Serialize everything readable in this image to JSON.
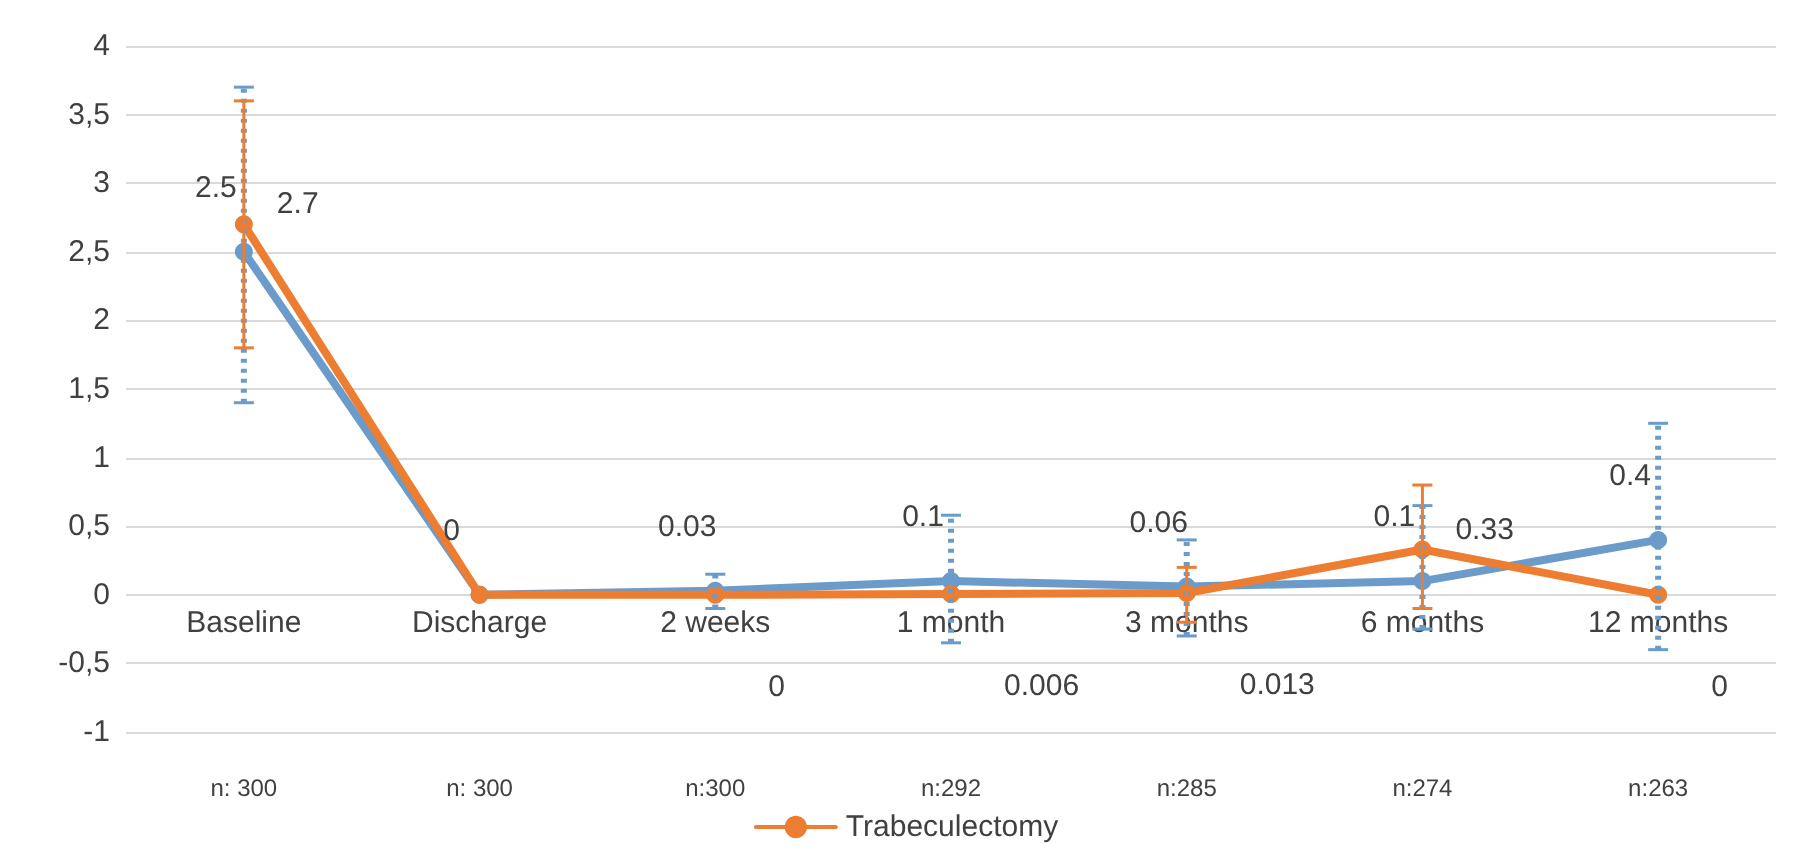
{
  "chart_data": {
    "type": "line",
    "categories": [
      "Baseline",
      "Discharge",
      "2 weeks",
      "1 month",
      "3 months",
      "6 months",
      "12 months"
    ],
    "series": [
      {
        "color": "#6a9bcb",
        "values": [
          2.5,
          0,
          0.03,
          0.1,
          0.06,
          0.1,
          0.4
        ],
        "value_labels": [
          "2.5",
          "0",
          "0.03",
          "0.1",
          "0.06",
          "0.1",
          "0.4"
        ],
        "errors": [
          [
            1.4,
            3.7
          ],
          null,
          [
            -0.1,
            0.15
          ],
          [
            -0.35,
            0.58
          ],
          [
            -0.3,
            0.4
          ],
          [
            -0.25,
            0.65
          ],
          [
            -0.4,
            1.25
          ]
        ]
      },
      {
        "name": "Trabeculectomy",
        "color": "#ed7d31",
        "values": [
          2.7,
          0,
          0,
          0.006,
          0.013,
          0.33,
          0
        ],
        "value_labels": [
          "2.7",
          null,
          "0",
          "0.006",
          "0.013",
          "0.33",
          "0"
        ],
        "errors": [
          [
            1.8,
            3.6
          ],
          null,
          null,
          null,
          [
            -0.2,
            0.2
          ],
          [
            -0.1,
            0.8
          ],
          null
        ]
      }
    ],
    "ylim": [
      -1,
      4
    ],
    "yticks": [
      -1,
      {
        "value": -0.5,
        "label": "-0,5"
      },
      0,
      {
        "value": 0.5,
        "label": "0,5"
      },
      1,
      {
        "value": 1.5,
        "label": "1,5"
      },
      2,
      {
        "value": 2.5,
        "label": "2,5"
      },
      3,
      {
        "value": 3.5,
        "label": "3,5"
      },
      4
    ],
    "grid": "y",
    "legend": "bottom",
    "marker": "circle",
    "line_style": "solid",
    "annotations": [
      "n: 300",
      "n: 300",
      "n:300",
      "n:292",
      "n:285",
      "n:274",
      "n:263"
    ]
  }
}
